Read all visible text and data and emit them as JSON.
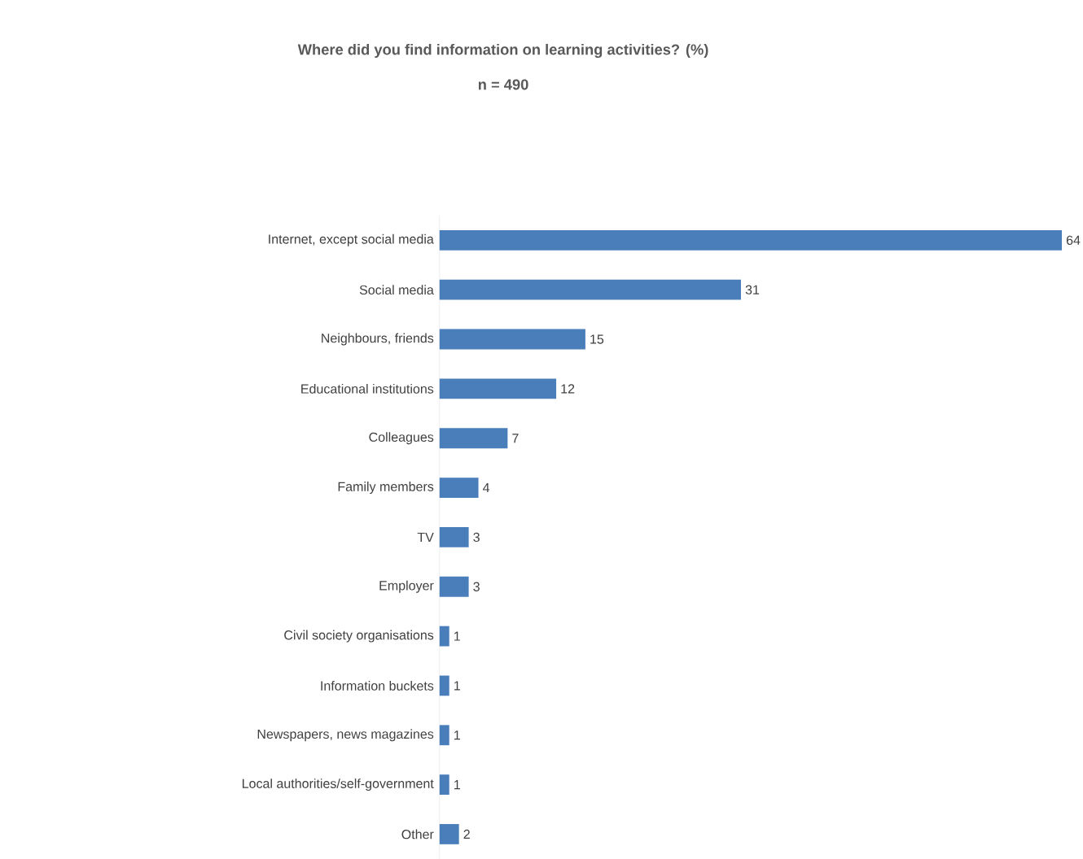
{
  "chart_data": {
    "type": "bar",
    "orientation": "horizontal",
    "title": "Where did you find information on learning activities? (%)",
    "subtitle": "n = 490",
    "categories": [
      "Internet, except social media",
      "Social media",
      "Neighbours, friends",
      "Educational institutions",
      "Colleagues",
      "Family members",
      "TV",
      "Employer",
      "Civil society organisations",
      "Information buckets",
      "Newspapers, news magazines",
      "Local authorities/self-government",
      "Other"
    ],
    "values": [
      64,
      31,
      15,
      12,
      7,
      4,
      3,
      3,
      1,
      1,
      1,
      1,
      2
    ],
    "color": "#4a7ebb",
    "data_labels": true
  }
}
